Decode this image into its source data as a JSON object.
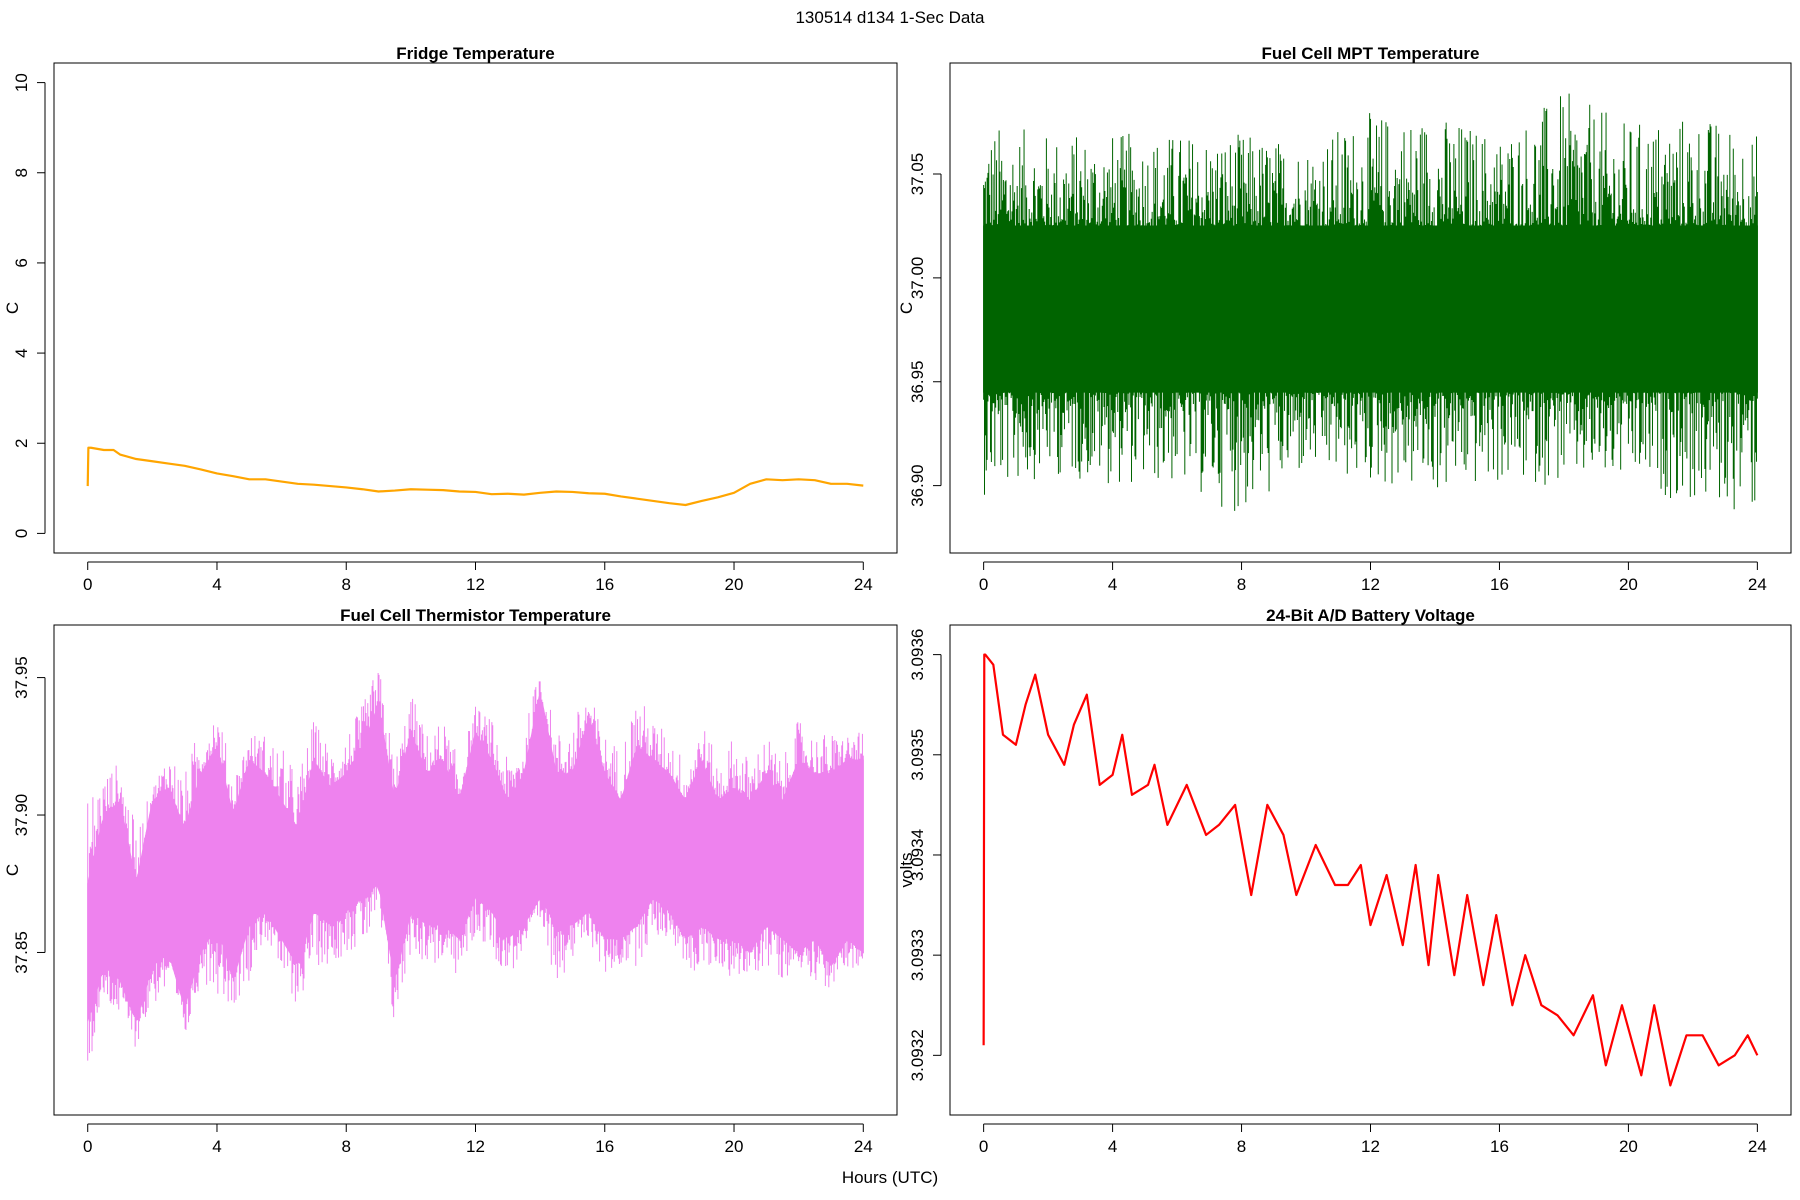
{
  "figure": {
    "suptitle": "130514   d134   1-Sec Data",
    "xlabel": "Hours (UTC)"
  },
  "chart_data": [
    {
      "type": "line",
      "title": "Fridge Temperature",
      "ylabel": "C",
      "xlim": [
        0,
        24
      ],
      "ylim": [
        0,
        10
      ],
      "xticks": [
        0,
        4,
        8,
        12,
        16,
        20,
        24
      ],
      "xtick_labels": [
        "0",
        "4",
        "8",
        "12",
        "16",
        "20",
        "24"
      ],
      "yticks": [
        0,
        2,
        4,
        6,
        8,
        10
      ],
      "ytick_labels": [
        "0",
        "2",
        "4",
        "6",
        "8",
        "10"
      ],
      "color": "#ffa500",
      "render": "line",
      "series": [
        {
          "x": [
            0,
            0.02,
            0.1,
            0.5,
            0.8,
            1.0,
            1.5,
            2.0,
            2.5,
            3.0,
            3.5,
            4.0,
            4.5,
            5.0,
            5.5,
            6.0,
            6.5,
            7.0,
            7.5,
            8.0,
            8.5,
            9.0,
            9.5,
            10.0,
            10.5,
            11.0,
            11.5,
            12.0,
            12.5,
            13.0,
            13.5,
            14.0,
            14.5,
            15.0,
            15.5,
            16.0,
            16.5,
            17.0,
            17.5,
            18.0,
            18.5,
            19.0,
            19.5,
            20.0,
            20.5,
            21.0,
            21.5,
            22.0,
            22.5,
            23.0,
            23.5,
            24.0
          ],
          "y": [
            1.05,
            1.9,
            1.9,
            1.85,
            1.85,
            1.75,
            1.65,
            1.6,
            1.55,
            1.5,
            1.42,
            1.33,
            1.27,
            1.2,
            1.2,
            1.15,
            1.1,
            1.08,
            1.05,
            1.02,
            0.98,
            0.93,
            0.95,
            0.98,
            0.97,
            0.96,
            0.93,
            0.92,
            0.87,
            0.88,
            0.86,
            0.9,
            0.93,
            0.92,
            0.89,
            0.88,
            0.82,
            0.77,
            0.72,
            0.67,
            0.63,
            0.72,
            0.8,
            0.9,
            1.1,
            1.2,
            1.18,
            1.2,
            1.18,
            1.1,
            1.1,
            1.06
          ]
        }
      ]
    },
    {
      "type": "line",
      "title": "Fuel Cell MPT Temperature",
      "ylabel": "C",
      "xlim": [
        0,
        24
      ],
      "ylim": [
        36.877,
        37.094
      ],
      "xticks": [
        0,
        4,
        8,
        12,
        16,
        20,
        24
      ],
      "xtick_labels": [
        "0",
        "4",
        "8",
        "12",
        "16",
        "20",
        "24"
      ],
      "yticks": [
        36.9,
        36.95,
        37.0,
        37.05
      ],
      "ytick_labels": [
        "36.90",
        "36.95",
        "37.00",
        "37.05"
      ],
      "color": "#006400",
      "render": "band",
      "series": [
        {
          "x": [
            0,
            2,
            4,
            6,
            8,
            10,
            12,
            14,
            16,
            18,
            20,
            22,
            24
          ],
          "y_center": [
            36.98,
            36.98,
            36.98,
            36.98,
            36.98,
            36.98,
            36.98,
            36.98,
            36.98,
            36.98,
            36.98,
            36.98,
            36.98
          ],
          "dense_min": [
            36.945,
            36.945,
            36.945,
            36.945,
            36.945,
            36.945,
            36.945,
            36.945,
            36.945,
            36.945,
            36.945,
            36.945,
            36.945
          ],
          "dense_max": [
            37.025,
            37.025,
            37.025,
            37.025,
            37.025,
            37.025,
            37.025,
            37.025,
            37.025,
            37.025,
            37.025,
            37.025,
            37.025
          ],
          "spike_min": [
            36.895,
            36.905,
            36.9,
            36.9,
            36.885,
            36.905,
            36.9,
            36.895,
            36.9,
            36.9,
            36.9,
            36.89,
            36.885
          ],
          "spike_max": [
            37.075,
            37.07,
            37.07,
            37.07,
            37.07,
            37.065,
            37.08,
            37.08,
            37.07,
            37.09,
            37.075,
            37.08,
            37.07
          ]
        }
      ]
    },
    {
      "type": "line",
      "title": "Fuel Cell Thermistor Temperature",
      "ylabel": "C",
      "xlim": [
        0,
        24
      ],
      "ylim": [
        37.798,
        37.962
      ],
      "xticks": [
        0,
        4,
        8,
        12,
        16,
        20,
        24
      ],
      "xtick_labels": [
        "0",
        "4",
        "8",
        "12",
        "16",
        "20",
        "24"
      ],
      "yticks": [
        37.85,
        37.9,
        37.95
      ],
      "ytick_labels": [
        "37.85",
        "37.90",
        "37.95"
      ],
      "color": "#ee82ee",
      "render": "band",
      "series": [
        {
          "x": [
            0,
            0.5,
            1.0,
            1.5,
            2.0,
            2.5,
            3.0,
            3.5,
            4.0,
            4.5,
            5.0,
            5.5,
            6.0,
            6.5,
            7.0,
            7.5,
            8.0,
            8.5,
            9.0,
            9.5,
            10.0,
            10.5,
            11.0,
            11.5,
            12.0,
            12.5,
            13.0,
            13.5,
            14.0,
            14.5,
            15.0,
            15.5,
            16.0,
            16.5,
            17.0,
            17.5,
            18.0,
            18.5,
            19.0,
            19.5,
            20.0,
            20.5,
            21.0,
            21.5,
            22.0,
            22.5,
            23.0,
            23.5,
            24.0
          ],
          "dense_min": [
            37.825,
            37.845,
            37.84,
            37.825,
            37.845,
            37.85,
            37.83,
            37.85,
            37.86,
            37.84,
            37.86,
            37.865,
            37.855,
            37.845,
            37.865,
            37.86,
            37.865,
            37.87,
            37.875,
            37.84,
            37.865,
            37.86,
            37.86,
            37.855,
            37.87,
            37.865,
            37.855,
            37.86,
            37.87,
            37.86,
            37.86,
            37.865,
            37.855,
            37.855,
            37.86,
            37.87,
            37.865,
            37.855,
            37.86,
            37.855,
            37.855,
            37.85,
            37.86,
            37.855,
            37.85,
            37.855,
            37.845,
            37.855,
            37.85
          ],
          "dense_max": [
            37.875,
            37.9,
            37.905,
            37.875,
            37.905,
            37.91,
            37.895,
            37.915,
            37.925,
            37.9,
            37.92,
            37.915,
            37.905,
            37.895,
            37.92,
            37.91,
            37.915,
            37.925,
            37.94,
            37.905,
            37.93,
            37.915,
            37.92,
            37.905,
            37.93,
            37.92,
            37.905,
            37.915,
            37.945,
            37.915,
            37.915,
            37.935,
            37.915,
            37.905,
            37.925,
            37.92,
            37.915,
            37.905,
            37.92,
            37.905,
            37.91,
            37.905,
            37.915,
            37.905,
            37.92,
            37.915,
            37.915,
            37.92,
            37.92
          ],
          "spike_min": [
            37.805,
            37.83,
            37.825,
            37.815,
            37.83,
            37.835,
            37.815,
            37.84,
            37.835,
            37.83,
            37.84,
            37.855,
            37.84,
            37.83,
            37.845,
            37.845,
            37.85,
            37.85,
            37.86,
            37.82,
            37.85,
            37.845,
            37.845,
            37.84,
            37.855,
            37.85,
            37.84,
            37.85,
            37.855,
            37.84,
            37.845,
            37.855,
            37.84,
            37.845,
            37.845,
            37.855,
            37.855,
            37.845,
            37.84,
            37.845,
            37.84,
            37.84,
            37.845,
            37.84,
            37.845,
            37.84,
            37.835,
            37.845,
            37.84
          ],
          "spike_max": [
            37.91,
            37.915,
            37.92,
            37.895,
            37.91,
            37.925,
            37.915,
            37.935,
            37.94,
            37.915,
            37.93,
            37.93,
            37.925,
            37.915,
            37.935,
            37.925,
            37.93,
            37.94,
            37.955,
            37.92,
            37.945,
            37.93,
            37.935,
            37.92,
            37.94,
            37.935,
            37.92,
            37.93,
            37.955,
            37.93,
            37.935,
            37.945,
            37.93,
            37.925,
            37.945,
            37.935,
            37.93,
            37.92,
            37.935,
            37.92,
            37.93,
            37.92,
            37.93,
            37.92,
            37.935,
            37.93,
            37.93,
            37.93,
            37.93
          ]
        }
      ]
    },
    {
      "type": "line",
      "title": "24-Bit A/D Battery Voltage",
      "ylabel": "volts",
      "xlim": [
        0,
        24
      ],
      "ylim": [
        3.09316,
        3.09361
      ],
      "xticks": [
        0,
        4,
        8,
        12,
        16,
        20,
        24
      ],
      "xtick_labels": [
        "0",
        "4",
        "8",
        "12",
        "16",
        "20",
        "24"
      ],
      "yticks": [
        3.0932,
        3.0933,
        3.0934,
        3.0935,
        3.0936
      ],
      "ytick_labels": [
        "3.0932",
        "3.0933",
        "3.0934",
        "3.0935",
        "3.0936"
      ],
      "color": "#ff0000",
      "render": "line",
      "series": [
        {
          "x": [
            0,
            0.02,
            0.05,
            0.3,
            0.6,
            1.0,
            1.3,
            1.6,
            2.0,
            2.5,
            2.8,
            3.2,
            3.6,
            4.0,
            4.3,
            4.6,
            5.1,
            5.3,
            5.7,
            6.3,
            6.9,
            7.3,
            7.8,
            8.3,
            8.8,
            9.3,
            9.7,
            10.3,
            10.9,
            11.3,
            11.7,
            12.0,
            12.5,
            13.0,
            13.4,
            13.8,
            14.1,
            14.6,
            15.0,
            15.5,
            15.9,
            16.4,
            16.8,
            17.3,
            17.8,
            18.3,
            18.9,
            19.3,
            19.8,
            20.4,
            20.8,
            21.3,
            21.8,
            22.3,
            22.8,
            23.3,
            23.7,
            24.0
          ],
          "y": [
            3.09321,
            3.0936,
            3.0936,
            3.09359,
            3.09352,
            3.09351,
            3.09355,
            3.09358,
            3.09352,
            3.09349,
            3.09353,
            3.09356,
            3.09347,
            3.09348,
            3.09352,
            3.09346,
            3.09347,
            3.09349,
            3.09343,
            3.09347,
            3.09342,
            3.09343,
            3.09345,
            3.09336,
            3.09345,
            3.09342,
            3.09336,
            3.09341,
            3.09337,
            3.09337,
            3.09339,
            3.09333,
            3.09338,
            3.09331,
            3.09339,
            3.09329,
            3.09338,
            3.09328,
            3.09336,
            3.09327,
            3.09334,
            3.09325,
            3.0933,
            3.09325,
            3.09324,
            3.09322,
            3.09326,
            3.09319,
            3.09325,
            3.09318,
            3.09325,
            3.09317,
            3.09322,
            3.09322,
            3.09319,
            3.0932,
            3.09322,
            3.0932
          ]
        }
      ]
    }
  ]
}
